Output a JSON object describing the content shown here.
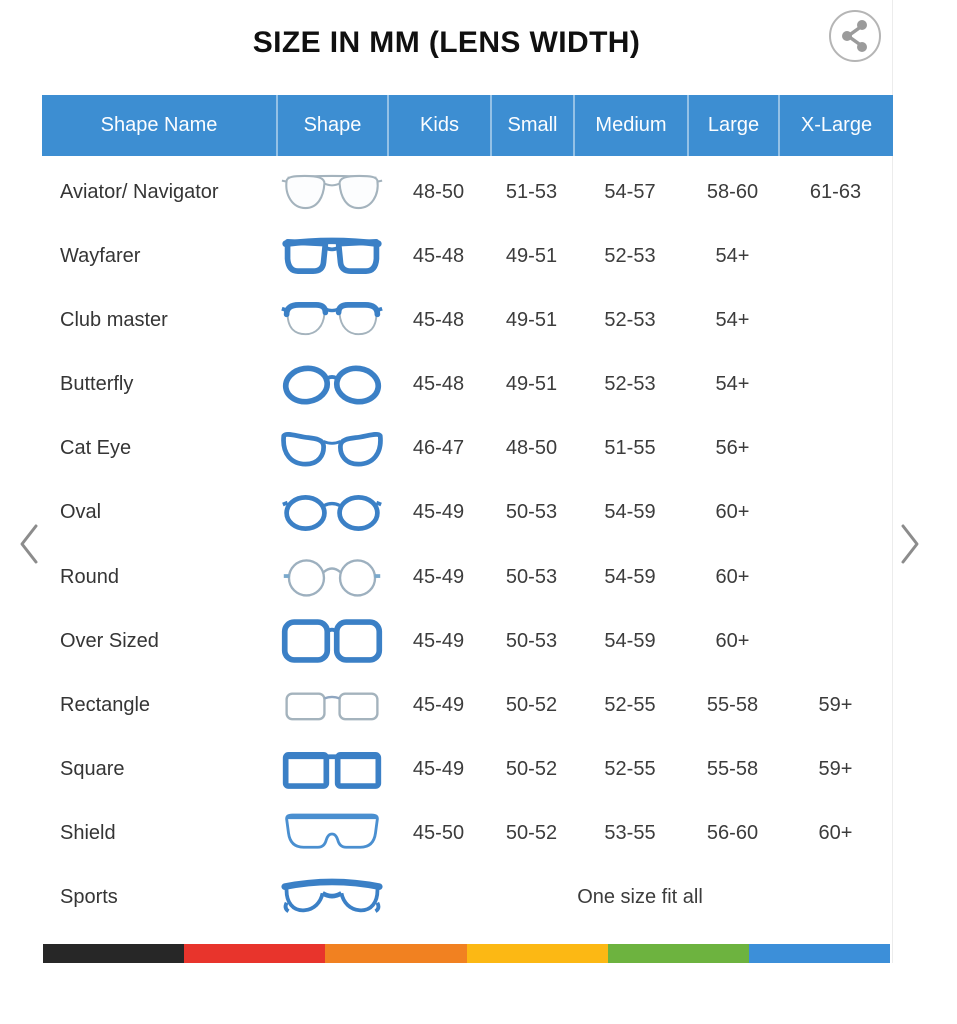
{
  "title": "SIZE IN MM (LENS WIDTH)",
  "colors": {
    "header_blue": "#3d8ed2",
    "icon_blue": "#3b80c6",
    "icon_thin_gray": "#a4b3bd",
    "footer_bar": [
      "#272727",
      "#e8342c",
      "#f18121",
      "#fcb814",
      "#6db33f",
      "#3c8fd9"
    ]
  },
  "table": {
    "headers": [
      "Shape Name",
      "Shape",
      "Kids",
      "Small",
      "Medium",
      "Large",
      "X-Large"
    ],
    "rows": [
      {
        "name": "Aviator/ Navigator",
        "icon": "aviator",
        "sizes": [
          "48-50",
          "51-53",
          "54-57",
          "58-60",
          "61-63"
        ]
      },
      {
        "name": "Wayfarer",
        "icon": "wayfarer",
        "sizes": [
          "45-48",
          "49-51",
          "52-53",
          "54+",
          ""
        ]
      },
      {
        "name": "Club master",
        "icon": "clubmaster",
        "sizes": [
          "45-48",
          "49-51",
          "52-53",
          "54+",
          ""
        ]
      },
      {
        "name": "Butterfly",
        "icon": "butterfly",
        "sizes": [
          "45-48",
          "49-51",
          "52-53",
          "54+",
          ""
        ]
      },
      {
        "name": "Cat Eye",
        "icon": "cateye",
        "sizes": [
          "46-47",
          "48-50",
          "51-55",
          "56+",
          ""
        ]
      },
      {
        "name": "Oval",
        "icon": "oval",
        "sizes": [
          "45-49",
          "50-53",
          "54-59",
          "60+",
          ""
        ]
      },
      {
        "name": "Round",
        "icon": "round",
        "sizes": [
          "45-49",
          "50-53",
          "54-59",
          "60+",
          ""
        ]
      },
      {
        "name": "Over Sized",
        "icon": "oversized",
        "sizes": [
          "45-49",
          "50-53",
          "54-59",
          "60+",
          ""
        ]
      },
      {
        "name": "Rectangle",
        "icon": "rectangle",
        "sizes": [
          "45-49",
          "50-52",
          "52-55",
          "55-58",
          "59+"
        ]
      },
      {
        "name": "Square",
        "icon": "square",
        "sizes": [
          "45-49",
          "50-52",
          "52-55",
          "55-58",
          "59+"
        ]
      },
      {
        "name": "Shield",
        "icon": "shield",
        "sizes": [
          "45-50",
          "50-52",
          "53-55",
          "56-60",
          "60+"
        ]
      },
      {
        "name": "Sports",
        "icon": "sports",
        "span_note": "One size fit all"
      }
    ]
  },
  "carousel": {
    "prev_label": "previous",
    "next_label": "next"
  },
  "share": {
    "label": "share"
  }
}
